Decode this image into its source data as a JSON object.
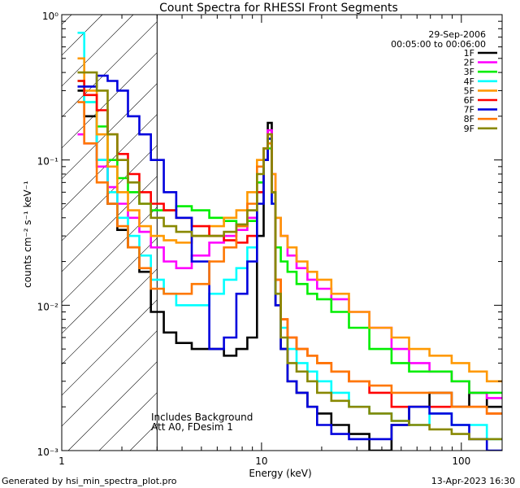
{
  "chart_data": {
    "type": "line",
    "title": "Count Spectra for RHESSI Front Segments",
    "xlabel": "Energy (keV)",
    "ylabel": "counts cm⁻² s⁻¹ keV⁻¹",
    "xscale": "log",
    "yscale": "log",
    "xlim": [
      1,
      160
    ],
    "ylim": [
      0.001,
      1
    ],
    "x_ticks": [
      {
        "value": 1,
        "label": "1"
      },
      {
        "value": 10,
        "label": "10"
      },
      {
        "value": 100,
        "label": "100"
      }
    ],
    "y_ticks": [
      {
        "value": 1,
        "label": "10⁰"
      },
      {
        "value": 0.1,
        "label": "10⁻¹"
      },
      {
        "value": 0.01,
        "label": "10⁻²"
      },
      {
        "value": 0.001,
        "label": "10⁻³"
      }
    ],
    "date": "29-Sep-2006",
    "time_range": "00:05:00 to 00:06:00",
    "annotations": [
      "Includes Background",
      "Att A0, FDesim 1"
    ],
    "shaded_region_xmax": 3,
    "series": [
      {
        "name": "1F",
        "color": "#000000",
        "x": [
          1.2,
          1.4,
          1.6,
          1.8,
          2.0,
          2.3,
          2.6,
          3.0,
          3.5,
          4,
          5,
          6,
          7,
          8,
          9,
          10,
          10.5,
          11,
          11.5,
          12,
          13,
          14,
          16,
          18,
          20,
          25,
          30,
          40,
          50,
          60,
          80,
          100,
          120,
          150
        ],
        "y": [
          0.3,
          0.2,
          0.1,
          0.05,
          0.033,
          0.025,
          0.017,
          0.009,
          0.0065,
          0.0055,
          0.005,
          0.005,
          0.0045,
          0.005,
          0.006,
          0.03,
          0.1,
          0.18,
          0.06,
          0.01,
          0.005,
          0.003,
          0.0025,
          0.002,
          0.0018,
          0.0015,
          0.0013,
          0.001,
          0.0015,
          0.002,
          0.0025,
          0.002,
          0.0025,
          0.002
        ]
      },
      {
        "name": "2F",
        "color": "#ff00ff",
        "x": [
          1.2,
          1.4,
          1.6,
          1.8,
          2.0,
          2.3,
          2.6,
          3.0,
          3.5,
          4,
          5,
          6,
          7,
          8,
          9,
          10,
          10.5,
          11,
          11.5,
          12,
          13,
          14,
          16,
          18,
          20,
          25,
          30,
          40,
          50,
          60,
          80,
          100,
          120,
          150
        ],
        "y": [
          0.15,
          0.13,
          0.09,
          0.065,
          0.05,
          0.04,
          0.032,
          0.025,
          0.02,
          0.018,
          0.022,
          0.027,
          0.03,
          0.033,
          0.04,
          0.07,
          0.12,
          0.16,
          0.08,
          0.04,
          0.03,
          0.022,
          0.018,
          0.015,
          0.013,
          0.011,
          0.009,
          0.007,
          0.005,
          0.004,
          0.0035,
          0.003,
          0.0025,
          0.0023
        ]
      },
      {
        "name": "3F",
        "color": "#00ee00",
        "x": [
          1.2,
          1.4,
          1.6,
          1.8,
          2.0,
          2.3,
          2.6,
          3.0,
          3.5,
          4,
          5,
          6,
          7,
          8,
          9,
          10,
          10.5,
          11,
          11.5,
          12,
          13,
          14,
          16,
          18,
          20,
          25,
          30,
          40,
          50,
          60,
          80,
          100,
          120,
          150
        ],
        "y": [
          0.35,
          0.25,
          0.17,
          0.1,
          0.075,
          0.06,
          0.05,
          0.045,
          0.045,
          0.048,
          0.045,
          0.04,
          0.038,
          0.035,
          0.038,
          0.07,
          0.1,
          0.12,
          0.06,
          0.025,
          0.02,
          0.017,
          0.014,
          0.012,
          0.011,
          0.009,
          0.007,
          0.005,
          0.004,
          0.0035,
          0.0035,
          0.003,
          0.0025,
          0.0025
        ]
      },
      {
        "name": "4F",
        "color": "#00ffff",
        "x": [
          1.2,
          1.4,
          1.6,
          1.8,
          2.0,
          2.3,
          2.6,
          3.0,
          3.5,
          4,
          5,
          6,
          7,
          8,
          9,
          10,
          10.5,
          11,
          11.5,
          12,
          13,
          14,
          16,
          18,
          20,
          25,
          30,
          40,
          50,
          60,
          80,
          100,
          120,
          150
        ],
        "y": [
          0.75,
          0.25,
          0.1,
          0.06,
          0.04,
          0.03,
          0.022,
          0.015,
          0.012,
          0.01,
          0.01,
          0.012,
          0.015,
          0.018,
          0.025,
          0.06,
          0.1,
          0.14,
          0.05,
          0.012,
          0.007,
          0.005,
          0.004,
          0.0035,
          0.003,
          0.0025,
          0.002,
          0.0018,
          0.0016,
          0.0015,
          0.0018,
          0.0015,
          0.0015,
          0.0012
        ]
      },
      {
        "name": "5F",
        "color": "#ff9900",
        "x": [
          1.2,
          1.4,
          1.6,
          1.8,
          2.0,
          2.3,
          2.6,
          3.0,
          3.5,
          4,
          5,
          6,
          7,
          8,
          9,
          10,
          10.5,
          11,
          11.5,
          12,
          13,
          14,
          16,
          18,
          20,
          25,
          30,
          40,
          50,
          60,
          80,
          100,
          120,
          150
        ],
        "y": [
          0.5,
          0.3,
          0.15,
          0.09,
          0.06,
          0.045,
          0.035,
          0.03,
          0.028,
          0.027,
          0.03,
          0.035,
          0.04,
          0.045,
          0.06,
          0.1,
          0.12,
          0.13,
          0.08,
          0.04,
          0.03,
          0.025,
          0.02,
          0.017,
          0.015,
          0.012,
          0.009,
          0.007,
          0.006,
          0.005,
          0.0045,
          0.004,
          0.0035,
          0.003
        ]
      },
      {
        "name": "6F",
        "color": "#ff0000",
        "x": [
          1.2,
          1.4,
          1.6,
          1.8,
          2.0,
          2.3,
          2.6,
          3.0,
          3.5,
          4,
          5,
          6,
          7,
          8,
          9,
          10,
          10.5,
          11,
          11.5,
          12,
          13,
          14,
          16,
          18,
          20,
          25,
          30,
          40,
          50,
          60,
          80,
          100,
          120,
          150
        ],
        "y": [
          0.35,
          0.28,
          0.22,
          0.15,
          0.11,
          0.08,
          0.06,
          0.05,
          0.045,
          0.04,
          0.035,
          0.03,
          0.028,
          0.027,
          0.03,
          0.06,
          0.1,
          0.15,
          0.06,
          0.015,
          0.008,
          0.006,
          0.005,
          0.0045,
          0.004,
          0.0035,
          0.003,
          0.0025,
          0.002,
          0.002,
          0.002,
          0.002,
          0.002,
          0.0018
        ]
      },
      {
        "name": "7F",
        "color": "#0000dd",
        "x": [
          1.2,
          1.4,
          1.6,
          1.8,
          2.0,
          2.3,
          2.6,
          3.0,
          3.5,
          4,
          5,
          6,
          7,
          8,
          9,
          10,
          10.5,
          11,
          11.5,
          12,
          13,
          14,
          16,
          18,
          20,
          25,
          30,
          40,
          50,
          60,
          80,
          100,
          120,
          150
        ],
        "y": [
          0.32,
          0.32,
          0.38,
          0.35,
          0.3,
          0.2,
          0.15,
          0.1,
          0.06,
          0.04,
          0.02,
          0.005,
          0.006,
          0.012,
          0.02,
          0.05,
          0.1,
          0.14,
          0.05,
          0.01,
          0.005,
          0.003,
          0.0025,
          0.002,
          0.0015,
          0.0013,
          0.0012,
          0.0012,
          0.0015,
          0.002,
          0.0018,
          0.0015,
          0.0012,
          0.001
        ]
      },
      {
        "name": "8F",
        "color": "#ff7700",
        "x": [
          1.2,
          1.4,
          1.6,
          1.8,
          2.0,
          2.3,
          2.6,
          3.0,
          3.5,
          4,
          5,
          6,
          7,
          8,
          9,
          10,
          10.5,
          11,
          11.5,
          12,
          13,
          14,
          16,
          18,
          20,
          25,
          30,
          40,
          50,
          60,
          80,
          100,
          120,
          150
        ],
        "y": [
          0.25,
          0.13,
          0.07,
          0.05,
          0.035,
          0.025,
          0.018,
          0.013,
          0.012,
          0.012,
          0.014,
          0.02,
          0.025,
          0.035,
          0.05,
          0.09,
          0.12,
          0.13,
          0.06,
          0.015,
          0.008,
          0.006,
          0.005,
          0.0045,
          0.004,
          0.0035,
          0.003,
          0.0028,
          0.0025,
          0.0025,
          0.0025,
          0.002,
          0.002,
          0.0018
        ]
      },
      {
        "name": "9F",
        "color": "#888800",
        "x": [
          1.2,
          1.4,
          1.6,
          1.8,
          2.0,
          2.3,
          2.6,
          3.0,
          3.5,
          4,
          5,
          6,
          7,
          8,
          9,
          10,
          10.5,
          11,
          11.5,
          12,
          13,
          14,
          16,
          18,
          20,
          25,
          30,
          40,
          50,
          60,
          80,
          100,
          120,
          150
        ],
        "y": [
          0.4,
          0.4,
          0.3,
          0.15,
          0.1,
          0.07,
          0.05,
          0.04,
          0.035,
          0.032,
          0.03,
          0.03,
          0.032,
          0.036,
          0.045,
          0.08,
          0.12,
          0.15,
          0.06,
          0.012,
          0.006,
          0.004,
          0.0035,
          0.003,
          0.0025,
          0.0022,
          0.002,
          0.0018,
          0.0016,
          0.0015,
          0.0014,
          0.0013,
          0.0012,
          0.0012
        ]
      }
    ]
  },
  "footer": {
    "generated_by": "Generated by hsi_min_spectra_plot.pro",
    "timestamp": "13-Apr-2023 16:30"
  }
}
